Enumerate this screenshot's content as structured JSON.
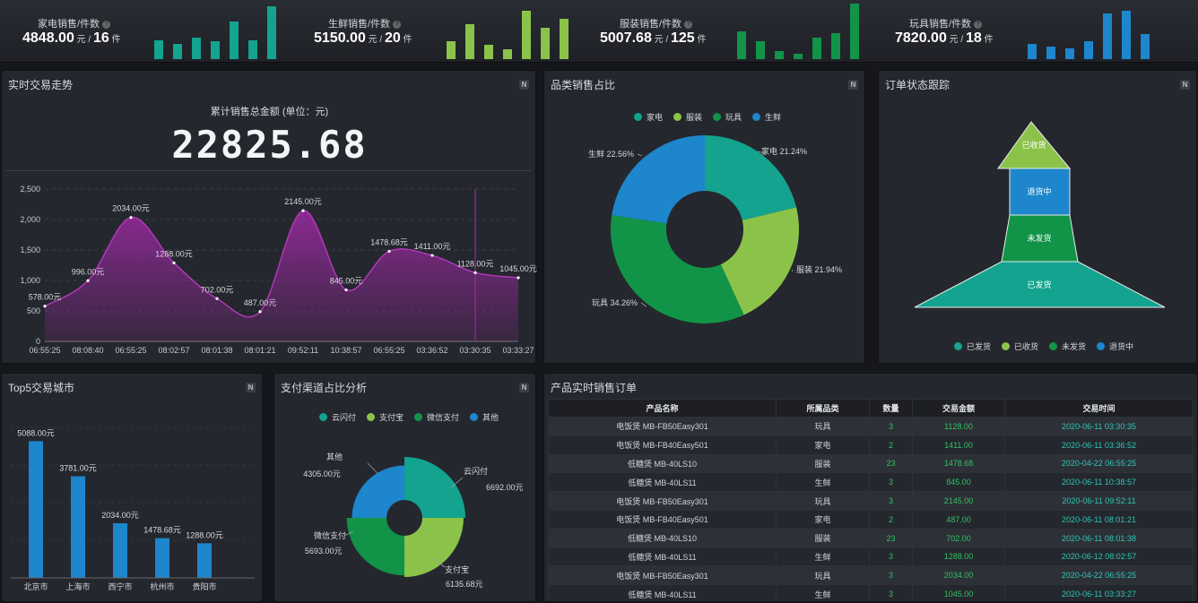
{
  "kpis": [
    {
      "label": "家电销售/件数",
      "amount": "4848.00",
      "amount_unit": "元",
      "qty": "16",
      "qty_unit": "件",
      "color": "#13a38e",
      "bars": [
        21,
        17,
        24,
        20,
        42,
        21,
        59
      ]
    },
    {
      "label": "生鲜销售/件数",
      "amount": "5150.00",
      "amount_unit": "元",
      "qty": "20",
      "qty_unit": "件",
      "color": "#8bc34a",
      "bars": [
        20,
        39,
        16,
        11,
        54,
        35,
        45
      ]
    },
    {
      "label": "服装销售/件数",
      "amount": "5007.68",
      "amount_unit": "元",
      "qty": "125",
      "qty_unit": "件",
      "color": "#119448",
      "bars": [
        31,
        20,
        9,
        6,
        24,
        29,
        62
      ]
    },
    {
      "label": "玩具销售/件数",
      "amount": "7820.00",
      "amount_unit": "元",
      "qty": "18",
      "qty_unit": "件",
      "color": "#1d86cc",
      "bars": [
        17,
        14,
        12,
        20,
        51,
        54,
        28
      ]
    }
  ],
  "trend": {
    "title": "实时交易走势",
    "subtitle": "累计销售总金额 (单位：元)",
    "total": "22825.68",
    "badge": "N",
    "chart_data": {
      "type": "area",
      "x": [
        "06:55:25",
        "08:08:40",
        "06:55:25",
        "08:02:57",
        "08:01:38",
        "08:01:21",
        "09:52:11",
        "10:38:57",
        "06:55:25",
        "03:36:52",
        "03:30:35",
        "03:33:27"
      ],
      "y": [
        578,
        996,
        2034,
        1288,
        702,
        487,
        2145,
        845,
        1478.68,
        1411,
        1128,
        1045
      ],
      "labels": [
        "578.00元",
        "996.00元",
        "2034.00元",
        "1288.00元",
        "702.00元",
        "487.00元",
        "2145.00元",
        "845.00元",
        "1478.68元",
        "1411.00元",
        "1128.00元",
        "1045.00元"
      ],
      "yticks": [
        "0",
        "500",
        "1,000",
        "1,500",
        "2,000",
        "2,500"
      ],
      "ylim": [
        0,
        2500
      ],
      "color": "#9c2aa3"
    }
  },
  "category": {
    "title": "品类销售占比",
    "badge": "N",
    "legend": [
      {
        "name": "家电",
        "color": "#13a38e"
      },
      {
        "name": "服装",
        "color": "#8bc34a"
      },
      {
        "name": "玩具",
        "color": "#119448"
      },
      {
        "name": "生鲜",
        "color": "#1d86cc"
      }
    ],
    "chart_data": {
      "type": "pie",
      "slices": [
        {
          "name": "家电",
          "value": 21.24,
          "label": "家电 21.24%",
          "color": "#13a38e"
        },
        {
          "name": "服装",
          "value": 21.94,
          "label": "服装 21.94%",
          "color": "#8bc34a"
        },
        {
          "name": "玩具",
          "value": 34.26,
          "label": "玩具 34.26%",
          "color": "#119448"
        },
        {
          "name": "生鲜",
          "value": 22.56,
          "label": "生鲜 22.56%",
          "color": "#1d86cc"
        }
      ]
    }
  },
  "order": {
    "title": "订单状态跟踪",
    "badge": "N",
    "stages": [
      {
        "name": "已收货",
        "color": "#8bc34a"
      },
      {
        "name": "退货中",
        "color": "#1d86cc"
      },
      {
        "name": "未发货",
        "color": "#119448"
      },
      {
        "name": "已发货",
        "color": "#13a38e"
      }
    ],
    "legend": [
      {
        "name": "已发货",
        "color": "#13a38e"
      },
      {
        "name": "已收货",
        "color": "#8bc34a"
      },
      {
        "name": "未发货",
        "color": "#119448"
      },
      {
        "name": "退货中",
        "color": "#1d86cc"
      }
    ]
  },
  "cities": {
    "title": "Top5交易城市",
    "badge": "N",
    "chart_data": {
      "type": "bar",
      "categories": [
        "北京市",
        "上海市",
        "西宁市",
        "杭州市",
        "贵阳市"
      ],
      "values": [
        5088,
        3781,
        2034,
        1478.68,
        1288
      ],
      "labels": [
        "5088.00元",
        "3781.00元",
        "2034.00元",
        "1478.68元",
        "1288.00元"
      ],
      "ylim": [
        0,
        5600
      ],
      "color": "#1d86cc"
    }
  },
  "payment": {
    "title": "支付渠道占比分析",
    "badge": "N",
    "legend": [
      {
        "name": "云闪付",
        "color": "#13a38e"
      },
      {
        "name": "支付宝",
        "color": "#8bc34a"
      },
      {
        "name": "微信支付",
        "color": "#119448"
      },
      {
        "name": "其他",
        "color": "#1d86cc"
      }
    ],
    "chart_data": {
      "type": "pie",
      "rose": true,
      "slices": [
        {
          "name": "云闪付",
          "value": 6692,
          "label": "6692.00元",
          "color": "#13a38e"
        },
        {
          "name": "支付宝",
          "value": 6135.68,
          "label": "6135.68元",
          "color": "#8bc34a"
        },
        {
          "name": "微信支付",
          "value": 5693,
          "label": "5693.00元",
          "color": "#119448"
        },
        {
          "name": "其他",
          "value": 4305,
          "label": "4305.00元",
          "color": "#1d86cc"
        }
      ]
    }
  },
  "orders": {
    "title": "产品实时销售订单",
    "columns": [
      "产品名称",
      "所属品类",
      "数量",
      "交易金额",
      "交易时间"
    ],
    "rows": [
      [
        "电饭煲 MB-FB50Easy301",
        "玩具",
        "3",
        "1128.00",
        "2020-06-11 03:30:35"
      ],
      [
        "电饭煲 MB-FB40Easy501",
        "家电",
        "2",
        "1411.00",
        "2020-06-11 03:36:52"
      ],
      [
        "低糖煲 MB-40LS10",
        "服装",
        "23",
        "1478.68",
        "2020-04-22 06:55:25"
      ],
      [
        "低糖煲 MB-40LS11",
        "生鲜",
        "3",
        "845.00",
        "2020-06-11 10:38:57"
      ],
      [
        "电饭煲 MB-FB50Easy301",
        "玩具",
        "3",
        "2145.00",
        "2020-06-11 09:52:11"
      ],
      [
        "电饭煲 MB-FB40Easy501",
        "家电",
        "2",
        "487.00",
        "2020-06-11 08:01:21"
      ],
      [
        "低糖煲 MB-40LS10",
        "服装",
        "23",
        "702.00",
        "2020-06-11 08:01:38"
      ],
      [
        "低糖煲 MB-40LS11",
        "生鲜",
        "3",
        "1288.00",
        "2020-06-12 08:02:57"
      ],
      [
        "电饭煲 MB-FB50Easy301",
        "玩具",
        "3",
        "2034.00",
        "2020-04-22 06:55:25"
      ],
      [
        "低糖煲 MB-40LS11",
        "生鲜",
        "3",
        "1045.00",
        "2020-06-11 03:33:27"
      ]
    ]
  }
}
